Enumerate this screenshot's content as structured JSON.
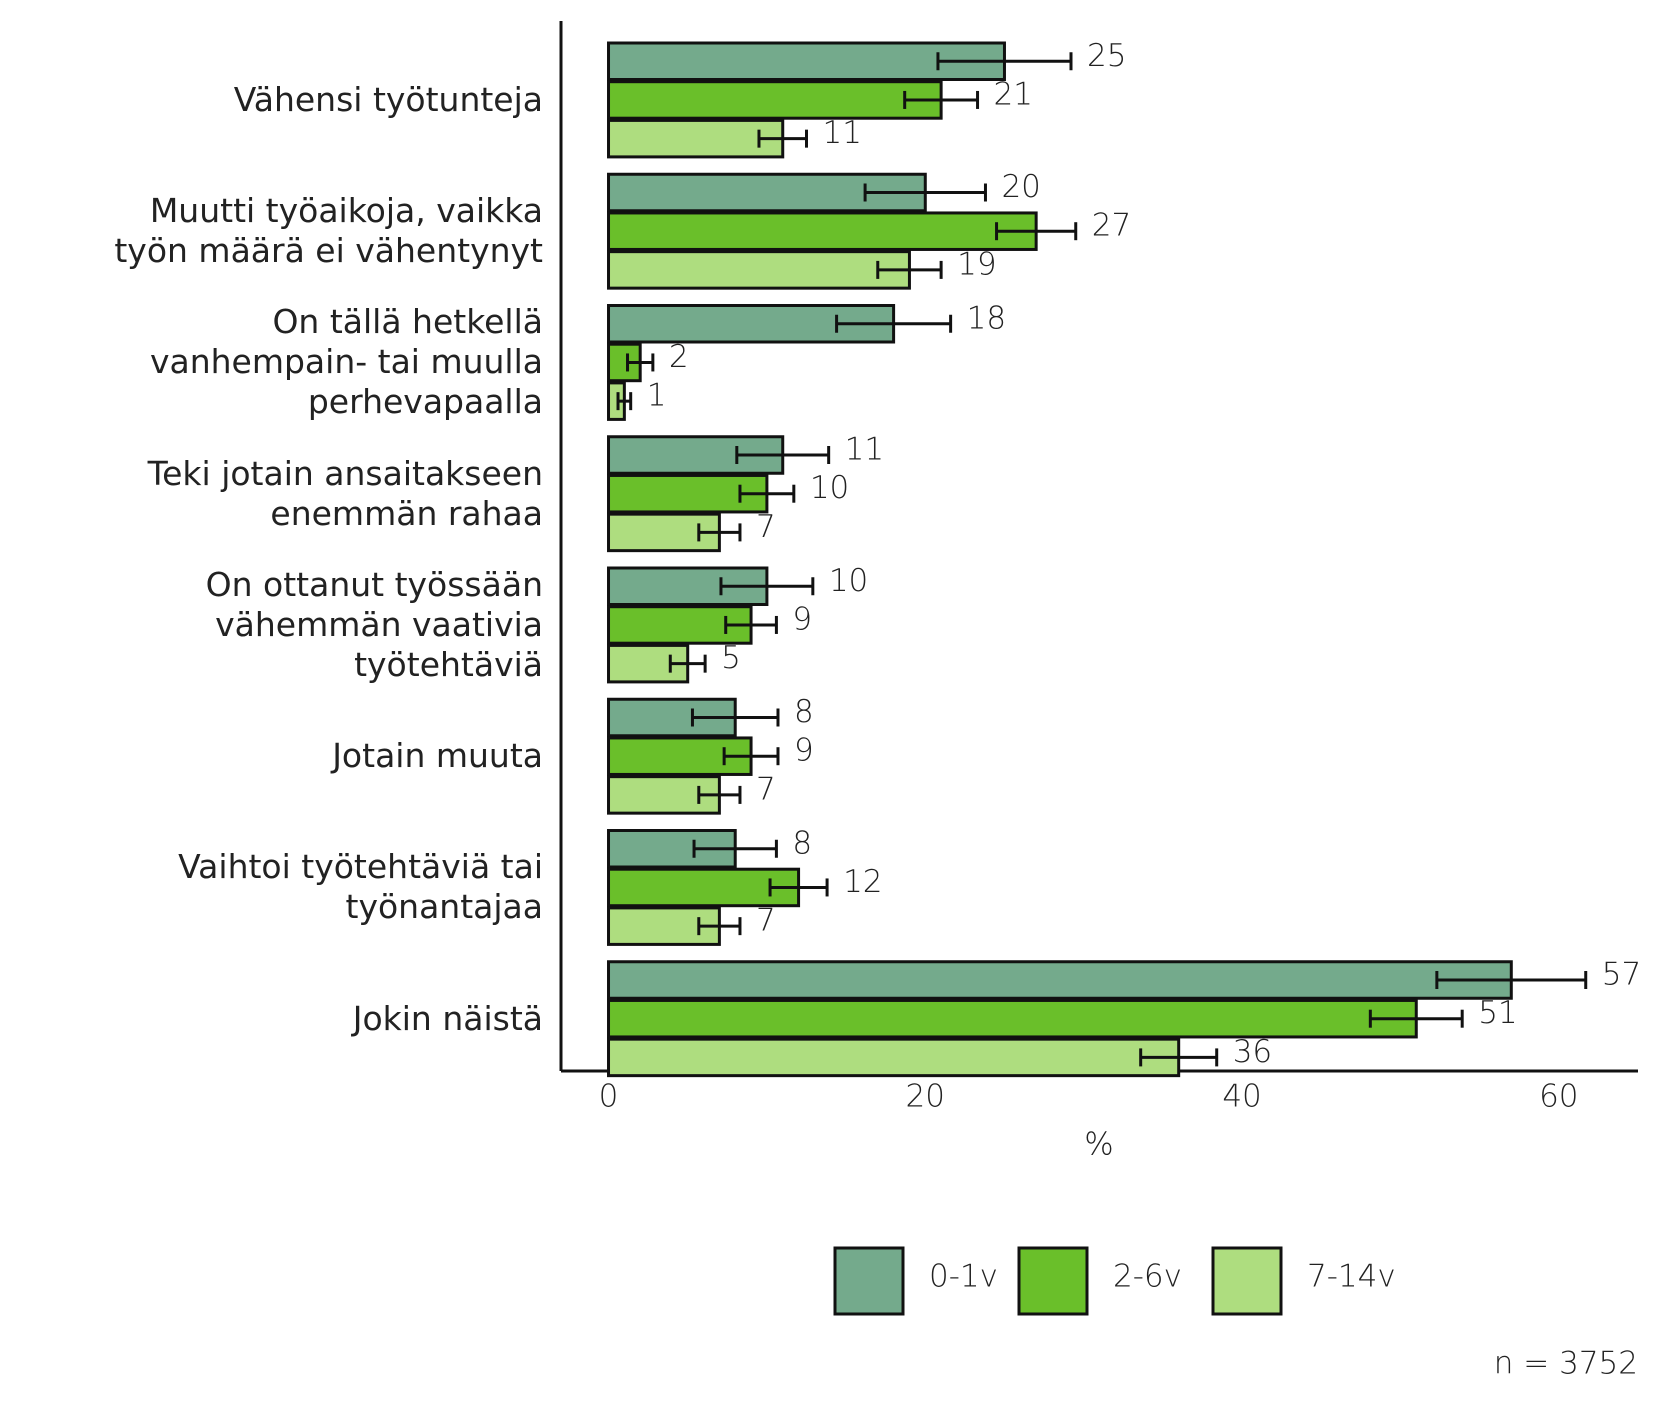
{
  "chart_data": {
    "type": "hbar",
    "categories": [
      "Vähensi työtunteja",
      "Muutti työaikoja, vaikka\ntyön määrä ei vähentynyt",
      "On tällä hetkellä\nvanhempain- tai muulla\nperhevapaalla",
      "Teki jotain ansaitakseen\nenemmän rahaa",
      "On ottanut työssään\nvähemmän vaativia\ntyötehtäviä",
      "Jotain muuta",
      "Vaihtoi työtehtäviä tai\ntyönantajaa",
      "Jokin näistä"
    ],
    "series": [
      {
        "name": "0-1v",
        "color": "#74aa8c",
        "values": [
          25,
          20,
          18,
          11,
          10,
          8,
          8,
          57
        ],
        "errors": [
          4.2,
          3.8,
          3.6,
          2.9,
          2.9,
          2.7,
          2.6,
          4.7
        ]
      },
      {
        "name": "2-6v",
        "color": "#6abf2a",
        "values": [
          21,
          27,
          2,
          10,
          9,
          9,
          12,
          51
        ],
        "errors": [
          2.3,
          2.5,
          0.8,
          1.7,
          1.6,
          1.7,
          1.8,
          2.9
        ]
      },
      {
        "name": "7-14v",
        "color": "#aedd7f",
        "values": [
          11,
          19,
          1,
          7,
          5,
          7,
          7,
          36
        ],
        "errors": [
          1.5,
          2.0,
          0.4,
          1.3,
          1.1,
          1.3,
          1.3,
          2.4
        ]
      }
    ],
    "xlabel": "%",
    "xlim": [
      -3,
      65
    ],
    "xticks": [
      0,
      20,
      40,
      60
    ],
    "note": "n = 3752"
  }
}
